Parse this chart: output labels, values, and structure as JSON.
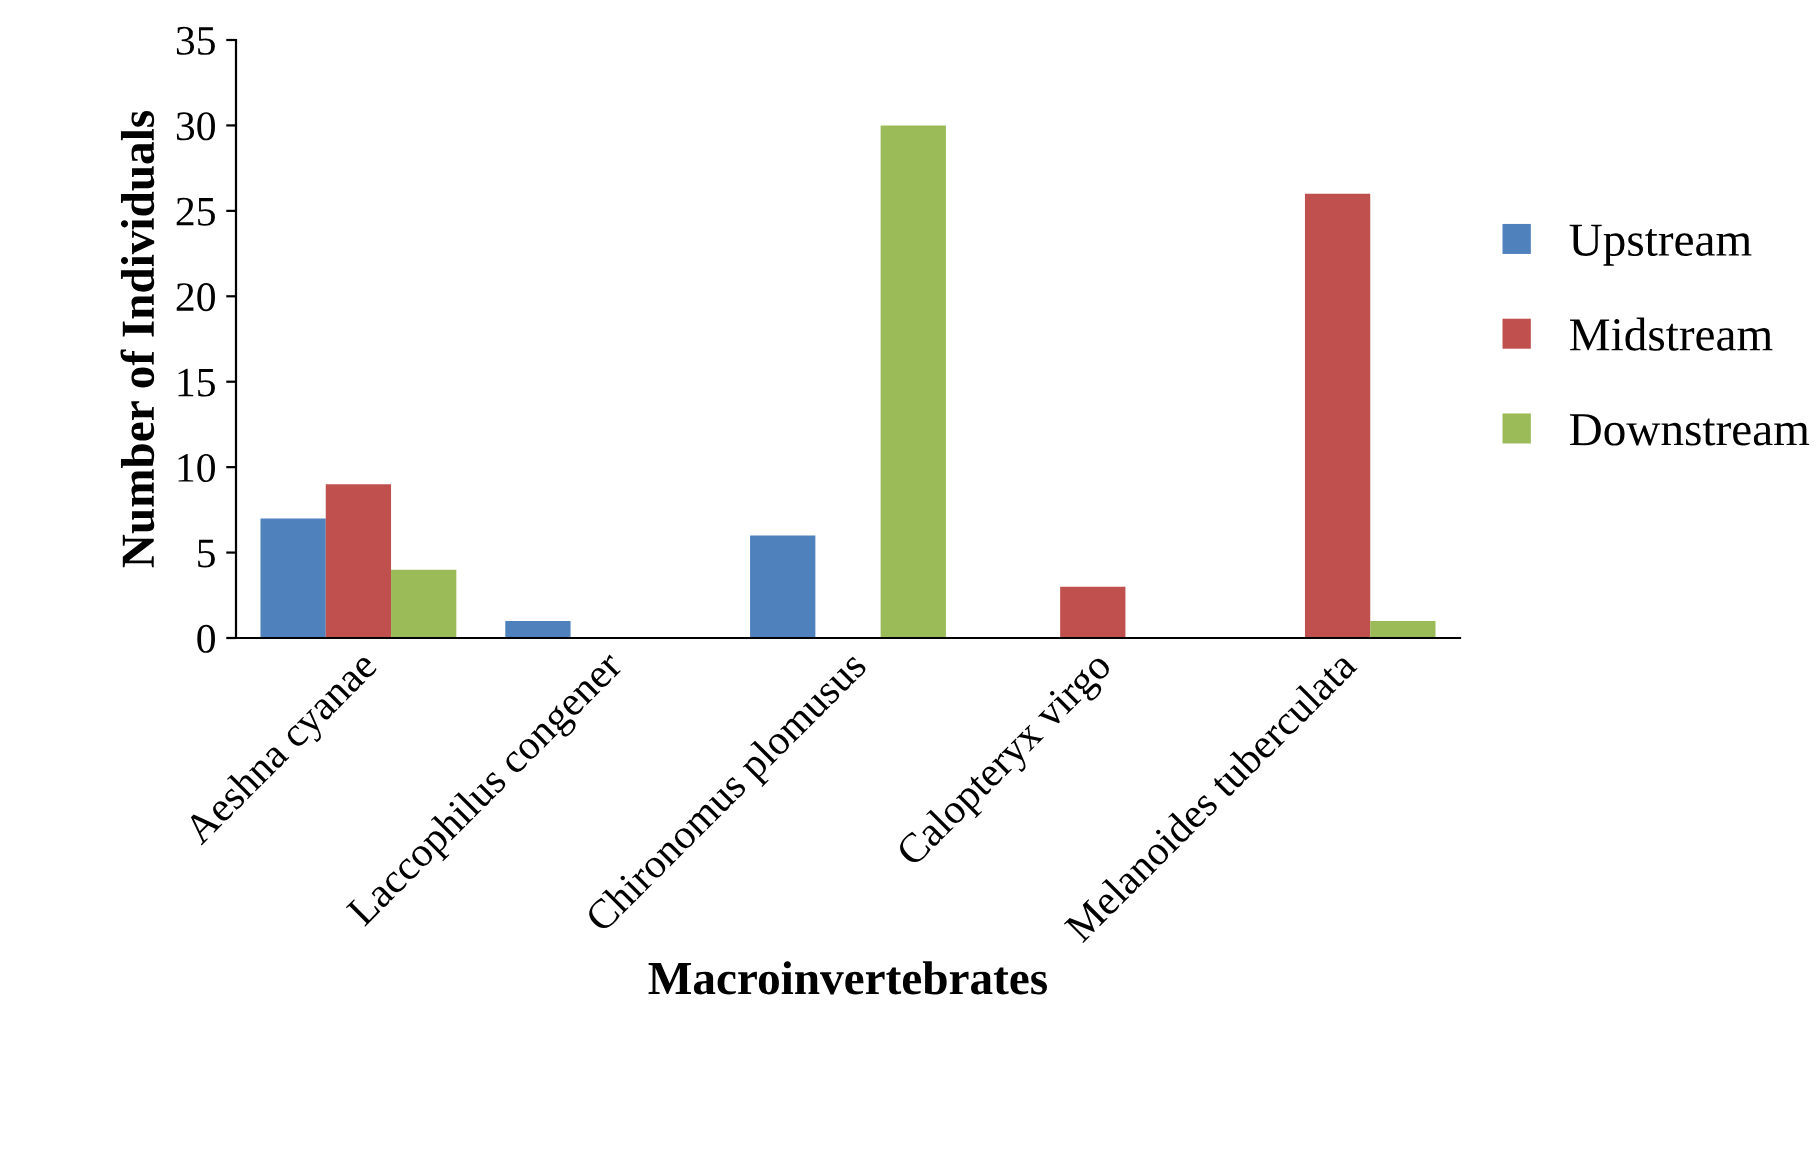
{
  "chart_data": {
    "type": "bar",
    "xlabel": "Macroinvertebrates",
    "ylabel": "Number of Individuals",
    "categories": [
      "Aeshna cyanae",
      "Laccophilus congener",
      "Chironomus plomusus",
      "Calopteryx virgo",
      "Melanoides tuberculata"
    ],
    "series": [
      {
        "name": "Upstream",
        "color": "#4f81bd",
        "values": [
          7,
          1,
          6,
          0,
          0
        ]
      },
      {
        "name": "Midstream",
        "color": "#c0504d",
        "values": [
          9,
          0,
          0,
          3,
          26
        ]
      },
      {
        "name": "Downstream",
        "color": "#9bbb59",
        "values": [
          4,
          0,
          30,
          0,
          1
        ]
      }
    ],
    "ylim": [
      0,
      35
    ],
    "yticks": [
      0,
      5,
      10,
      15,
      20,
      25,
      30,
      35
    ],
    "grid": false,
    "legend": "right"
  }
}
